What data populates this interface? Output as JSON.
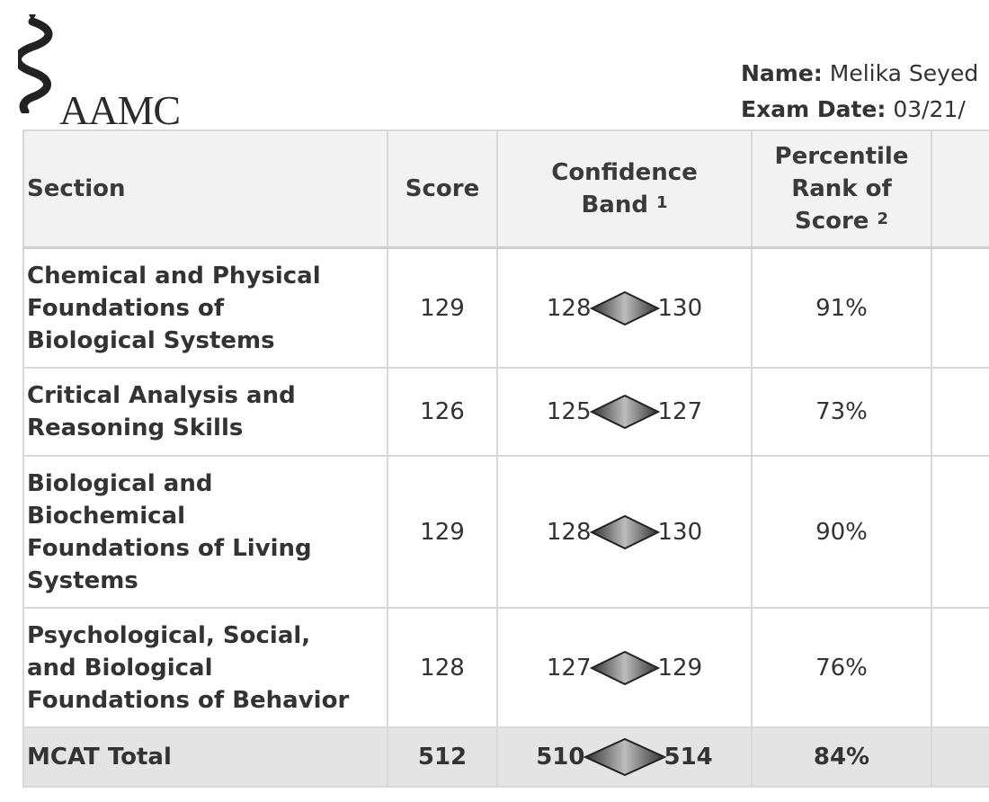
{
  "header": {
    "logo_text": "AAMC",
    "name_label": "Name:",
    "name_value": "Melika Seyed",
    "exam_date_label": "Exam Date:",
    "exam_date_value": "03/21/"
  },
  "table": {
    "columns": {
      "section": "Section",
      "score": "Score",
      "band_line1": "Confidence",
      "band_line2": "Band",
      "band_note": "1",
      "pct_line1": "Percentile",
      "pct_line2": "Rank of",
      "pct_line3": "Score",
      "pct_note": "2"
    },
    "rows": [
      {
        "section_lines": [
          "Chemical and Physical",
          "Foundations of",
          "Biological Systems"
        ],
        "score": "129",
        "band_low": "128",
        "band_high": "130",
        "percentile": "91%"
      },
      {
        "section_lines": [
          "Critical Analysis and",
          "Reasoning Skills"
        ],
        "score": "126",
        "band_low": "125",
        "band_high": "127",
        "percentile": "73%"
      },
      {
        "section_lines": [
          "Biological and",
          "Biochemical",
          "Foundations of Living",
          "Systems"
        ],
        "score": "129",
        "band_low": "128",
        "band_high": "130",
        "percentile": "90%"
      },
      {
        "section_lines": [
          "Psychological, Social,",
          "and Biological",
          "Foundations of Behavior"
        ],
        "score": "128",
        "band_low": "127",
        "band_high": "129",
        "percentile": "76%"
      }
    ],
    "total": {
      "section": "MCAT Total",
      "score": "512",
      "band_low": "510",
      "band_high": "514",
      "percentile": "84%"
    }
  }
}
